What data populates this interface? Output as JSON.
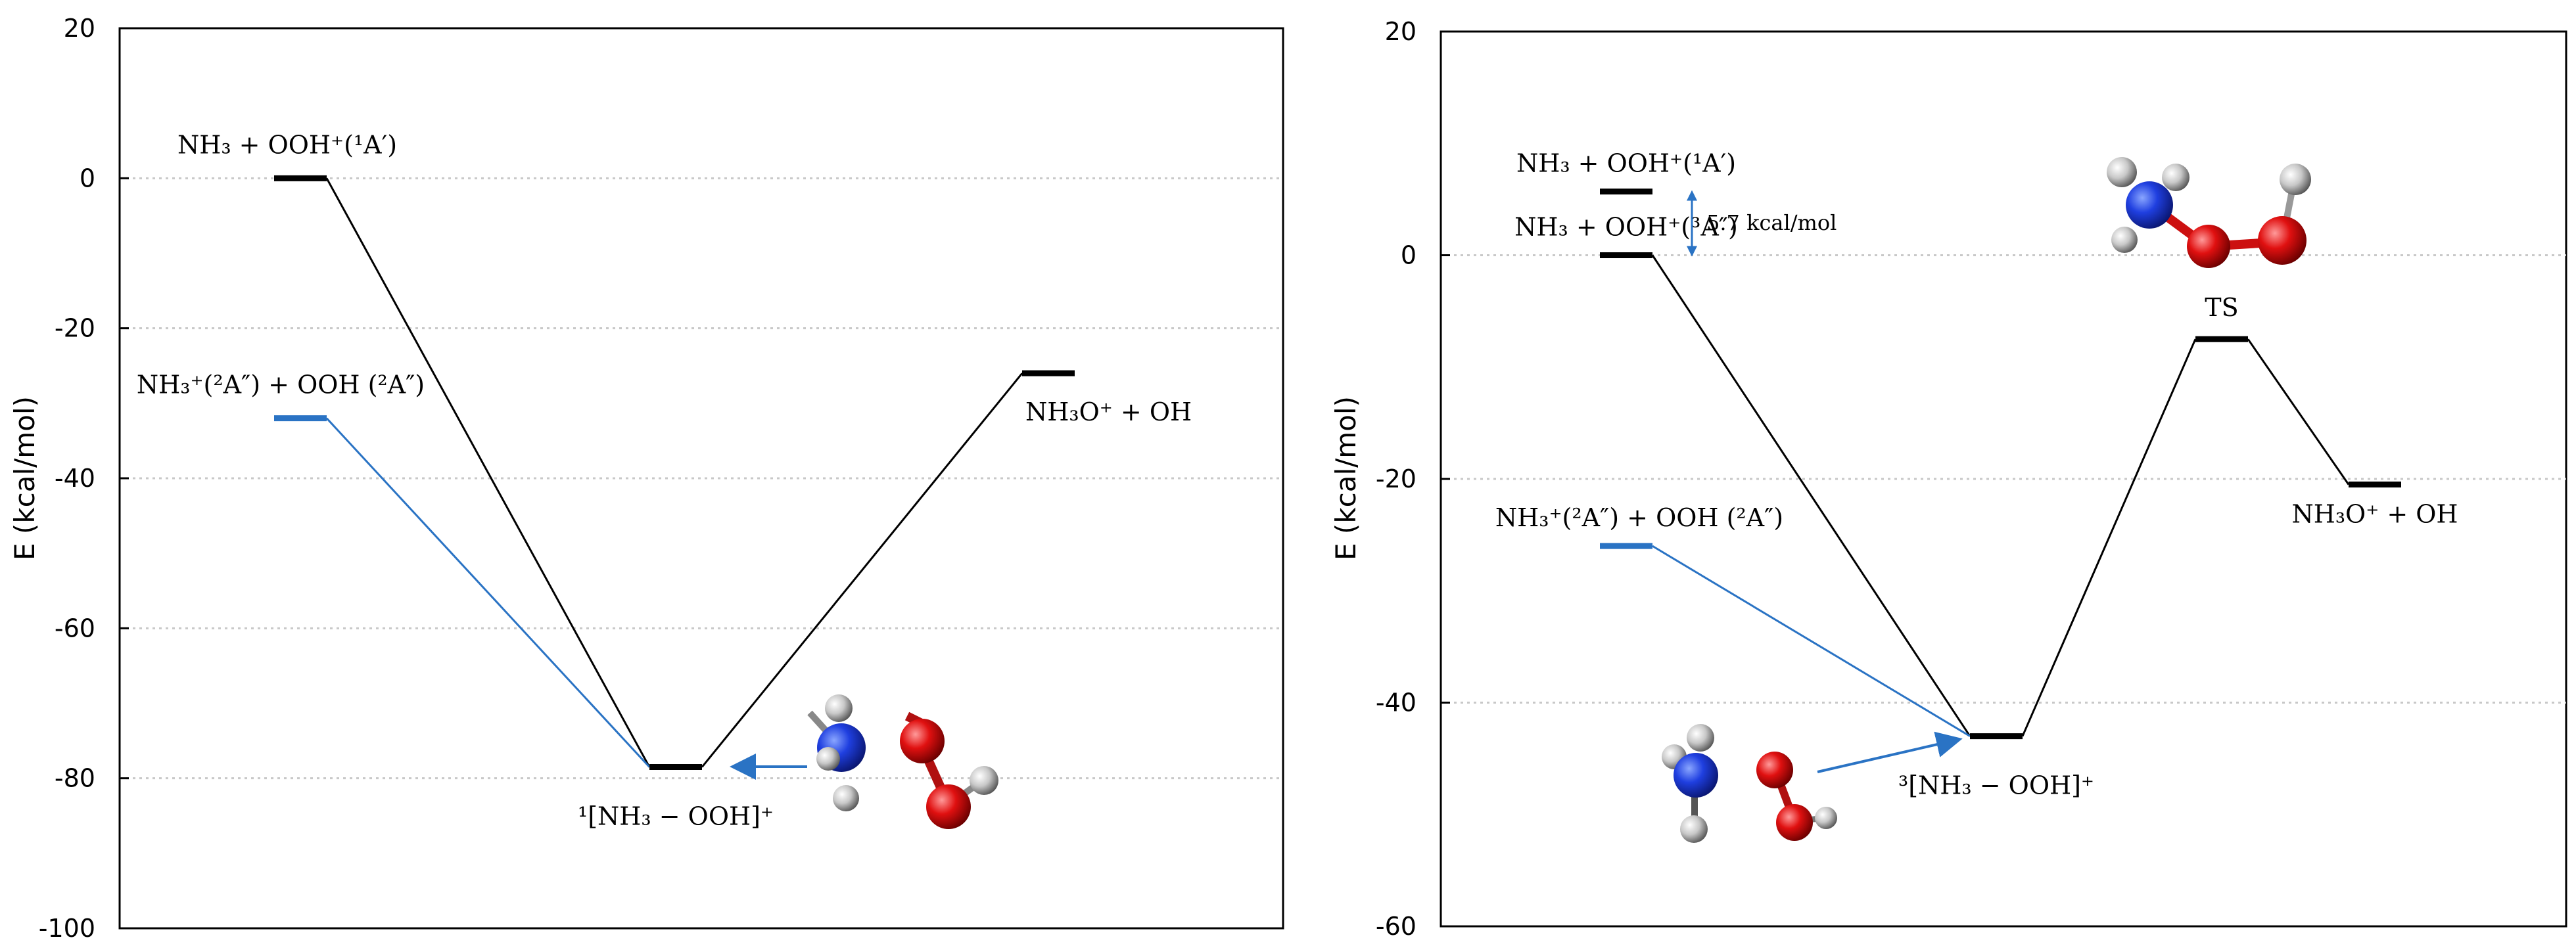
{
  "chart_data": [
    {
      "type": "energy-diagram",
      "title": "",
      "ylabel": "E (kcal/mol)",
      "ylim": [
        -100,
        20
      ],
      "yticks": [
        20,
        0,
        -20,
        -40,
        -60,
        -80,
        -100
      ],
      "grid": true,
      "levels": [
        {
          "id": "R1",
          "label": "NH₃ + OOH⁺(¹A′)",
          "energy": 0,
          "color": "#000000"
        },
        {
          "id": "R2",
          "label": "NH₃⁺(²A″) + OOH (²A″)",
          "energy": -32,
          "color": "#2a73c4"
        },
        {
          "id": "INT",
          "label": "¹[NH₃ − OOH]⁺",
          "energy": -78.5,
          "color": "#000000"
        },
        {
          "id": "P",
          "label": "NH₃O⁺ + OH",
          "energy": -26,
          "color": "#000000"
        }
      ],
      "connections": [
        {
          "from": "R1",
          "to": "INT",
          "color": "#000000"
        },
        {
          "from": "R2",
          "to": "INT",
          "color": "#2a73c4"
        },
        {
          "from": "INT",
          "to": "P",
          "color": "#000000"
        }
      ]
    },
    {
      "type": "energy-diagram",
      "title": "",
      "ylabel": "E (kcal/mol)",
      "ylim": [
        -60,
        20
      ],
      "yticks": [
        20,
        0,
        -20,
        -40,
        -60
      ],
      "grid": true,
      "annotation": "5.7 kcal/mol",
      "levels": [
        {
          "id": "R1s",
          "label": "NH₃ + OOH⁺(¹A′)",
          "energy": 5.7,
          "color": "#000000"
        },
        {
          "id": "R1t",
          "label": "NH₃ + OOH⁺(³A″)",
          "energy": 0,
          "color": "#000000"
        },
        {
          "id": "R2",
          "label": "NH₃⁺(²A″) + OOH (²A″)",
          "energy": -26,
          "color": "#2a73c4"
        },
        {
          "id": "INT",
          "label": "³[NH₃ − OOH]⁺",
          "energy": -43,
          "color": "#000000"
        },
        {
          "id": "TS",
          "label": "TS",
          "energy": -7.5,
          "color": "#000000"
        },
        {
          "id": "P",
          "label": "NH₃O⁺ + OH",
          "energy": -20.5,
          "color": "#000000"
        }
      ],
      "connections": [
        {
          "from": "R1t",
          "to": "INT",
          "color": "#000000"
        },
        {
          "from": "R2",
          "to": "INT",
          "color": "#2a73c4"
        },
        {
          "from": "INT",
          "to": "TS",
          "color": "#000000"
        },
        {
          "from": "TS",
          "to": "P",
          "color": "#000000"
        }
      ]
    }
  ]
}
